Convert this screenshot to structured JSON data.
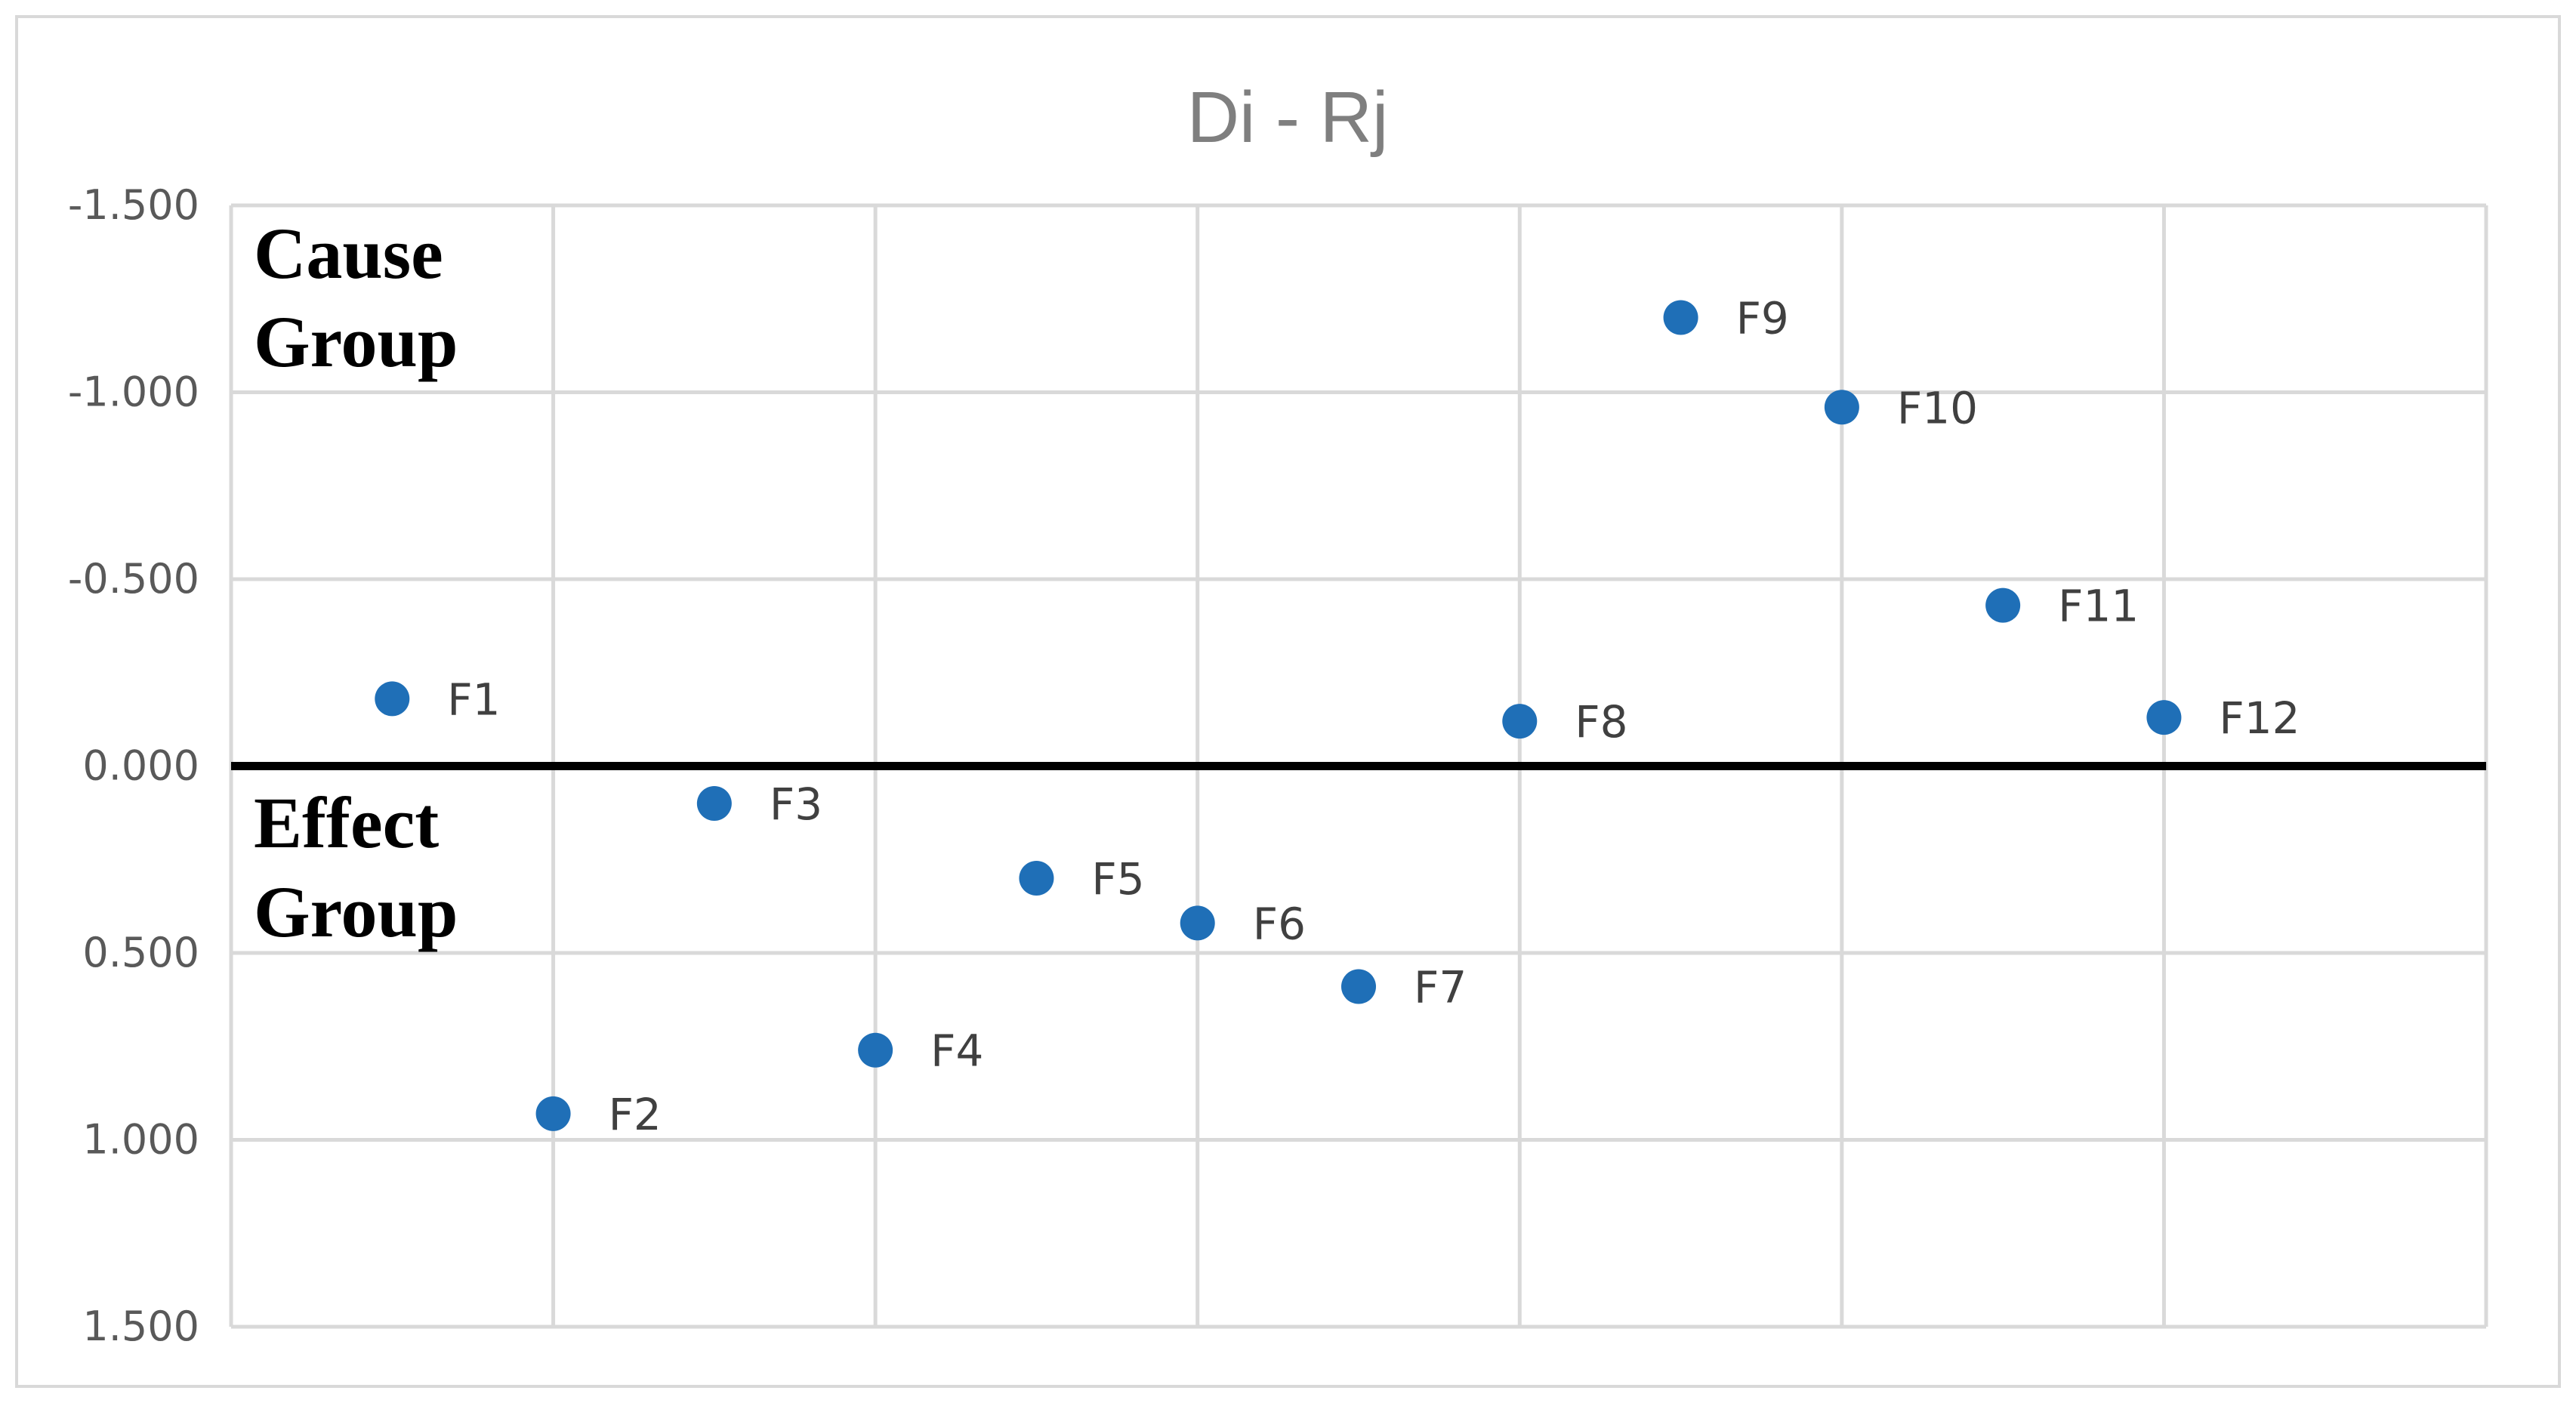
{
  "chart_data": {
    "type": "scatter",
    "title": "Di - Rj",
    "xlabel": "",
    "ylabel": "",
    "x_range": [
      0,
      7
    ],
    "x_gridlines": [
      1,
      2,
      3,
      4,
      5,
      6,
      7
    ],
    "y_range": [
      -1.5,
      1.5
    ],
    "y_axis_reversed": true,
    "y_ticks": [
      -1.5,
      -1.0,
      -0.5,
      0.0,
      0.5,
      1.0,
      1.5
    ],
    "y_tick_labels": [
      "-1.500",
      "-1.000",
      "-0.500",
      "0.000",
      "0.500",
      "1.000",
      "1.500"
    ],
    "grid": true,
    "point_color": "#1f6fb7",
    "zero_line_color": "#000000",
    "points": [
      {
        "label": "F1",
        "x": 0.5,
        "y": -0.18
      },
      {
        "label": "F2",
        "x": 1.0,
        "y": 0.93
      },
      {
        "label": "F3",
        "x": 1.5,
        "y": 0.1
      },
      {
        "label": "F4",
        "x": 2.0,
        "y": 0.76
      },
      {
        "label": "F5",
        "x": 2.5,
        "y": 0.3
      },
      {
        "label": "F6",
        "x": 3.0,
        "y": 0.42
      },
      {
        "label": "F7",
        "x": 3.5,
        "y": 0.59
      },
      {
        "label": "F8",
        "x": 4.0,
        "y": -0.12
      },
      {
        "label": "F9",
        "x": 4.5,
        "y": -1.2
      },
      {
        "label": "F10",
        "x": 5.0,
        "y": -0.96
      },
      {
        "label": "F11",
        "x": 5.5,
        "y": -0.43
      },
      {
        "label": "F12",
        "x": 6.0,
        "y": -0.13
      }
    ],
    "annotations": {
      "cause_group": [
        "Cause",
        "Group"
      ],
      "effect_group": [
        "Effect",
        "Group"
      ]
    }
  }
}
